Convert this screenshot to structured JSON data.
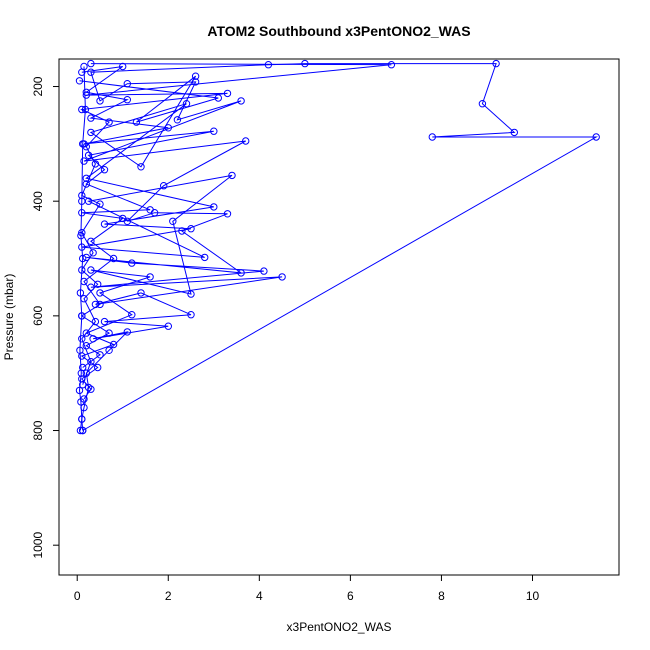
{
  "chart_data": {
    "type": "line",
    "title": "ATOM2 Southbound x3PentONO2_WAS",
    "xlabel": "x3PentONO2_WAS",
    "ylabel": "Pressure (mbar)",
    "xlim": [
      -0.4,
      11.9
    ],
    "ylim": [
      1052,
      152
    ],
    "y_reversed": true,
    "x_ticks": [
      0,
      2,
      4,
      6,
      8,
      10
    ],
    "y_ticks": [
      200,
      400,
      600,
      800,
      1000
    ],
    "grid": false,
    "color": "#0000ff",
    "marker": "open-circle",
    "series": [
      {
        "points": [
          [
            0.12,
            800
          ],
          [
            11.4,
            288
          ],
          [
            7.8,
            288
          ],
          [
            9.6,
            280
          ],
          [
            8.9,
            230
          ],
          [
            9.2,
            160
          ],
          [
            5.0,
            160
          ],
          [
            4.2,
            162
          ],
          [
            0.3,
            175
          ],
          [
            0.5,
            225
          ],
          [
            1.1,
            195
          ],
          [
            2.6,
            192
          ],
          [
            2.2,
            258
          ],
          [
            3.6,
            225
          ],
          [
            0.15,
            330
          ],
          [
            3.7,
            295
          ],
          [
            1.9,
            373
          ],
          [
            1.1,
            435
          ],
          [
            1.7,
            420
          ],
          [
            3.3,
            422
          ],
          [
            2.3,
            452
          ],
          [
            3.6,
            525
          ],
          [
            0.2,
            498
          ],
          [
            1.2,
            508
          ],
          [
            4.1,
            522
          ],
          [
            0.3,
            550
          ],
          [
            4.5,
            532
          ],
          [
            0.4,
            580
          ],
          [
            1.4,
            560
          ],
          [
            2.5,
            598
          ],
          [
            0.6,
            610
          ],
          [
            2.0,
            618
          ],
          [
            0.35,
            640
          ],
          [
            1.1,
            628
          ],
          [
            0.7,
            660
          ],
          [
            0.2,
            700
          ],
          [
            0.25,
            725
          ],
          [
            0.15,
            760
          ],
          [
            0.1,
            780
          ],
          [
            0.12,
            800
          ]
        ]
      },
      {
        "points": [
          [
            0.05,
            190
          ],
          [
            3.1,
            220
          ],
          [
            1.3,
            262
          ],
          [
            2.6,
            182
          ],
          [
            1.4,
            340
          ],
          [
            0.3,
            280
          ],
          [
            2.4,
            230
          ],
          [
            0.2,
            360
          ],
          [
            3.0,
            410
          ],
          [
            0.6,
            440
          ],
          [
            2.5,
            448
          ],
          [
            0.1,
            480
          ],
          [
            2.8,
            498
          ],
          [
            0.25,
            400
          ],
          [
            3.4,
            355
          ],
          [
            2.1,
            435
          ],
          [
            2.5,
            562
          ],
          [
            0.3,
            520
          ],
          [
            1.6,
            532
          ],
          [
            0.5,
            560
          ],
          [
            1.2,
            598
          ],
          [
            0.2,
            630
          ],
          [
            0.8,
            650
          ],
          [
            0.1,
            670
          ],
          [
            0.45,
            690
          ],
          [
            0.1,
            710
          ],
          [
            0.3,
            728
          ],
          [
            0.15,
            745
          ]
        ]
      },
      {
        "points": [
          [
            0.1,
            175
          ],
          [
            1.0,
            165
          ],
          [
            0.2,
            210
          ],
          [
            1.1,
            223
          ],
          [
            0.3,
            255
          ],
          [
            2.0,
            272
          ],
          [
            0.15,
            300
          ],
          [
            3.0,
            278
          ],
          [
            0.25,
            320
          ],
          [
            0.6,
            345
          ],
          [
            0.2,
            370
          ],
          [
            1.6,
            415
          ],
          [
            0.1,
            420
          ],
          [
            1.0,
            430
          ],
          [
            0.3,
            470
          ],
          [
            0.8,
            500
          ],
          [
            0.15,
            540
          ],
          [
            0.5,
            580
          ],
          [
            0.1,
            600
          ],
          [
            0.7,
            630
          ],
          [
            0.2,
            652
          ],
          [
            0.5,
            668
          ],
          [
            0.12,
            690
          ]
        ]
      },
      {
        "points": [
          [
            0.3,
            160
          ],
          [
            6.9,
            162
          ],
          [
            0.2,
            215
          ],
          [
            3.3,
            212
          ],
          [
            0.1,
            240
          ],
          [
            0.7,
            262
          ],
          [
            0.2,
            305
          ],
          [
            0.4,
            335
          ],
          [
            0.1,
            390
          ],
          [
            0.5,
            405
          ],
          [
            0.1,
            455
          ],
          [
            0.35,
            490
          ],
          [
            0.1,
            520
          ],
          [
            0.45,
            545
          ],
          [
            0.15,
            570
          ],
          [
            0.4,
            610
          ],
          [
            0.1,
            640
          ],
          [
            0.3,
            680
          ],
          [
            0.12,
            720
          ]
        ]
      },
      {
        "points": [
          [
            0.15,
            165
          ],
          [
            0.18,
            240
          ],
          [
            0.12,
            300
          ],
          [
            0.1,
            400
          ],
          [
            0.08,
            460
          ],
          [
            0.12,
            500
          ],
          [
            0.07,
            560
          ],
          [
            0.1,
            600
          ],
          [
            0.06,
            660
          ],
          [
            0.09,
            700
          ],
          [
            0.05,
            730
          ],
          [
            0.08,
            750
          ],
          [
            0.1,
            780
          ],
          [
            0.07,
            800
          ]
        ]
      }
    ]
  }
}
